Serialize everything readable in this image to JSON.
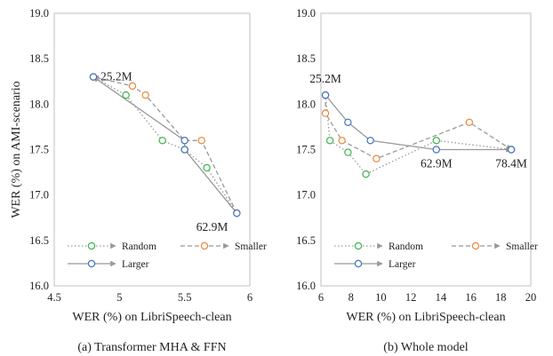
{
  "chart_data": [
    {
      "type": "line",
      "caption": "(a) Transformer MHA & FFN",
      "xlabel": "WER (%) on LibriSpeech-clean",
      "ylabel": "WER (%) on AMI-scenario",
      "xlim": [
        4.5,
        6.0
      ],
      "ylim": [
        16.0,
        19.0
      ],
      "xticks": [
        "4.5",
        "5",
        "5.5",
        "6"
      ],
      "xtick_values": [
        4.5,
        5.0,
        5.5,
        6.0
      ],
      "yticks": [
        "16.0",
        "16.5",
        "17.0",
        "17.5",
        "18.0",
        "18.5",
        "19.0"
      ],
      "ytick_values": [
        16.0,
        16.5,
        17.0,
        17.5,
        18.0,
        18.5,
        19.0
      ],
      "grid": false,
      "legend_position": "bottom-left",
      "series": [
        {
          "name": "Random",
          "color": "#3cb44b",
          "line_color": "#999999",
          "dash": "dotted",
          "points": [
            [
              5.9,
              16.8
            ],
            [
              5.67,
              17.3
            ],
            [
              5.5,
              17.5
            ],
            [
              5.33,
              17.6
            ],
            [
              5.05,
              18.1
            ],
            [
              4.8,
              18.3
            ]
          ]
        },
        {
          "name": "Smaller",
          "color": "#e8883a",
          "line_color": "#999999",
          "dash": "dashed",
          "points": [
            [
              5.9,
              16.8
            ],
            [
              5.63,
              17.6
            ],
            [
              5.5,
              17.6
            ],
            [
              5.2,
              18.1
            ],
            [
              5.1,
              18.2
            ],
            [
              4.8,
              18.3
            ]
          ]
        },
        {
          "name": "Larger",
          "color": "#4472c4",
          "line_color": "#999999",
          "dash": "solid",
          "points": [
            [
              5.9,
              16.8
            ],
            [
              5.5,
              17.5
            ],
            [
              5.5,
              17.6
            ],
            [
              4.8,
              18.3
            ]
          ]
        }
      ],
      "annotations": [
        {
          "text": "25.2M",
          "x": 4.8,
          "y": 18.3,
          "anchor": "right"
        },
        {
          "text": "62.9M",
          "x": 5.9,
          "y": 16.8,
          "anchor": "below-left"
        }
      ]
    },
    {
      "type": "line",
      "caption": "(b) Whole model",
      "xlabel": "WER (%) on LibriSpeech-clean",
      "ylabel": "",
      "xlim": [
        6,
        20
      ],
      "ylim": [
        16.0,
        19.0
      ],
      "xticks": [
        "6",
        "8",
        "10",
        "12",
        "14",
        "16",
        "18",
        "20"
      ],
      "xtick_values": [
        6,
        8,
        10,
        12,
        14,
        16,
        18,
        20
      ],
      "yticks": [
        "16.0",
        "16.5",
        "17.0",
        "17.5",
        "18.0",
        "18.5",
        "19.0"
      ],
      "ytick_values": [
        16.0,
        16.5,
        17.0,
        17.5,
        18.0,
        18.5,
        19.0
      ],
      "grid": false,
      "legend_position": "bottom",
      "series": [
        {
          "name": "Random",
          "color": "#3cb44b",
          "line_color": "#999999",
          "dash": "dotted",
          "points": [
            [
              6.3,
              18.1
            ],
            [
              6.6,
              17.6
            ],
            [
              7.8,
              17.47
            ],
            [
              9.0,
              17.23
            ],
            [
              13.7,
              17.6
            ],
            [
              18.7,
              17.5
            ]
          ]
        },
        {
          "name": "Smaller",
          "color": "#e8883a",
          "line_color": "#999999",
          "dash": "dashed",
          "points": [
            [
              6.3,
              18.1
            ],
            [
              6.3,
              17.9
            ],
            [
              7.4,
              17.6
            ],
            [
              9.7,
              17.4
            ],
            [
              15.9,
              17.8
            ],
            [
              18.7,
              17.5
            ]
          ]
        },
        {
          "name": "Larger",
          "color": "#4472c4",
          "line_color": "#999999",
          "dash": "solid",
          "points": [
            [
              6.3,
              18.1
            ],
            [
              7.8,
              17.8
            ],
            [
              9.3,
              17.6
            ],
            [
              13.7,
              17.5
            ],
            [
              18.7,
              17.5
            ]
          ]
        }
      ],
      "annotations": [
        {
          "text": "25.2M",
          "x": 6.3,
          "y": 18.1,
          "anchor": "above"
        },
        {
          "text": "62.9M",
          "x": 13.7,
          "y": 17.5,
          "anchor": "below"
        },
        {
          "text": "78.4M",
          "x": 18.7,
          "y": 17.5,
          "anchor": "below"
        }
      ]
    }
  ]
}
